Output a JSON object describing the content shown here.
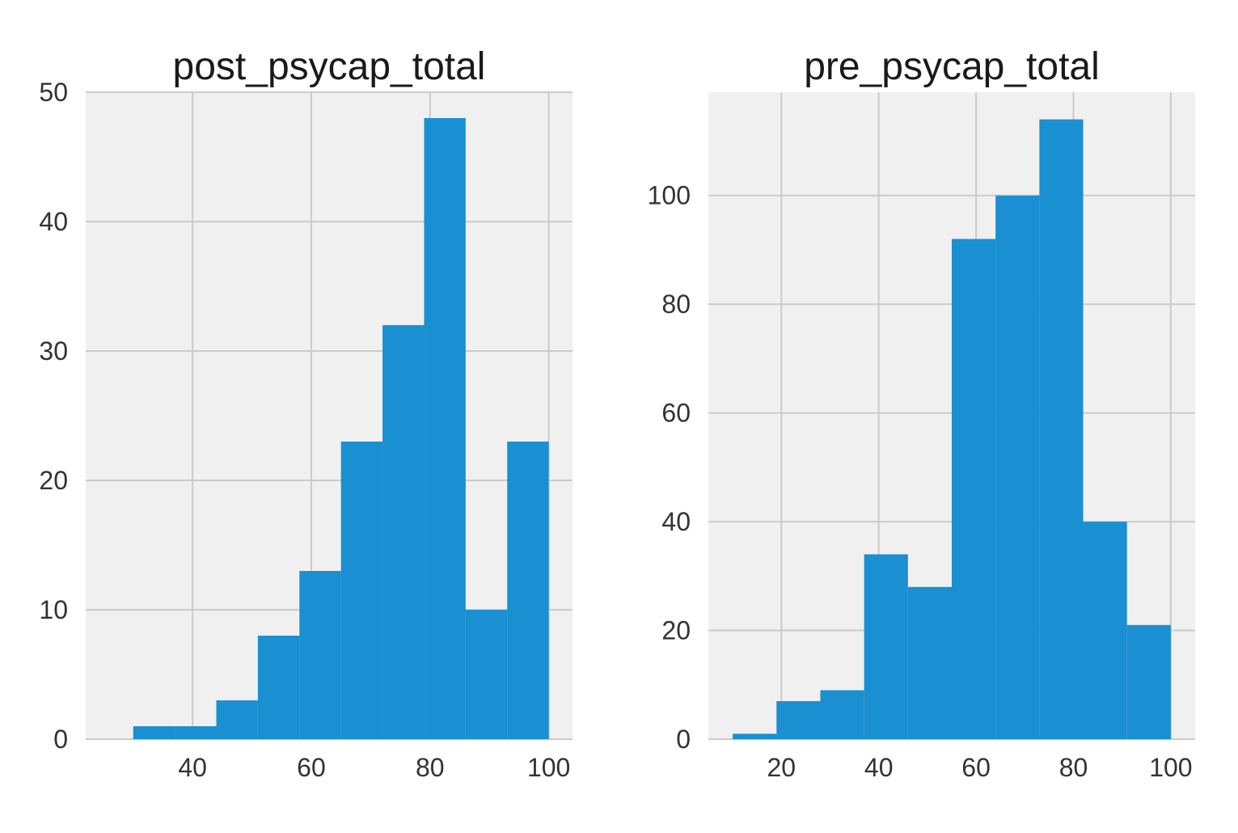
{
  "colors": {
    "bar": "#1a8fd1",
    "plot_background": "#f0f0f0",
    "grid": "#cbcbcb"
  },
  "chart_data": [
    {
      "type": "bar",
      "histogram": true,
      "title": "post_psycap_total",
      "xlabel": "",
      "ylabel": "",
      "bin_edges": [
        30,
        37,
        44,
        51,
        58,
        65,
        72,
        79,
        86,
        93,
        100
      ],
      "values": [
        1,
        1,
        3,
        8,
        13,
        23,
        32,
        48,
        10,
        23
      ],
      "xlim": [
        22,
        104
      ],
      "ylim": [
        0,
        50
      ],
      "xticks": [
        40,
        60,
        80,
        100
      ],
      "yticks": [
        0,
        10,
        20,
        30,
        40,
        50
      ],
      "grid": true
    },
    {
      "type": "bar",
      "histogram": true,
      "title": "pre_psycap_total",
      "xlabel": "",
      "ylabel": "",
      "bin_edges": [
        10,
        19,
        28,
        37,
        46,
        55,
        64,
        73,
        82,
        91,
        100
      ],
      "values": [
        1,
        7,
        9,
        34,
        28,
        92,
        100,
        114,
        40,
        21
      ],
      "xlim": [
        5,
        105
      ],
      "ylim": [
        0,
        119
      ],
      "xticks": [
        20,
        40,
        60,
        80,
        100
      ],
      "yticks": [
        0,
        20,
        40,
        60,
        80,
        100
      ],
      "grid": true
    }
  ]
}
